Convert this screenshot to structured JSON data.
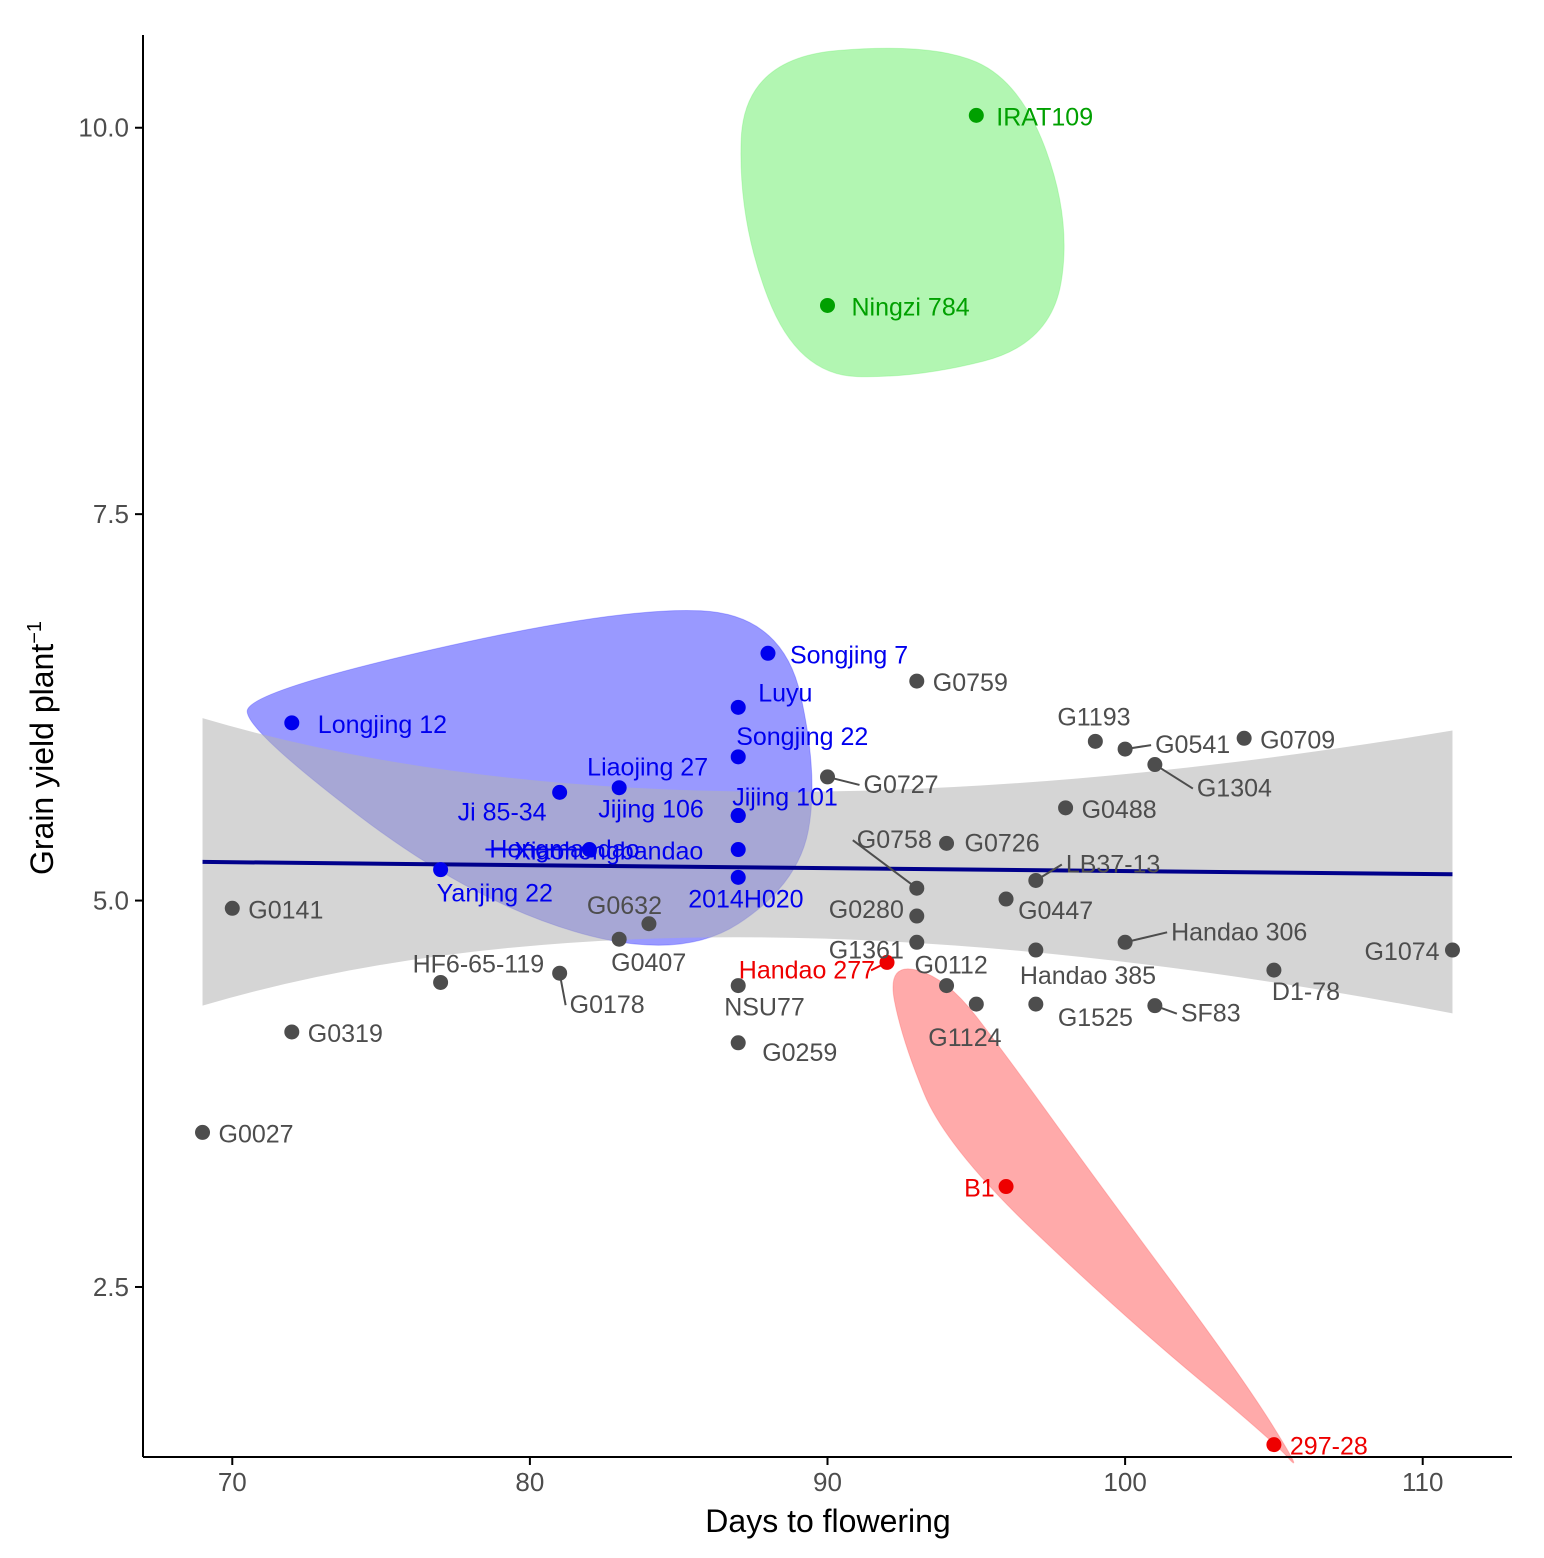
{
  "chart_data": {
    "type": "scatter",
    "title": "",
    "xlabel": "Days to flowering",
    "ylabel": "Grain yield plant",
    "ylabel_superscript": "−1",
    "xlim": [
      67,
      113
    ],
    "ylim": [
      1.4,
      10.6
    ],
    "xticks": [
      70,
      80,
      90,
      100,
      110
    ],
    "yticks": [
      2.5,
      5.0,
      7.5,
      10.0
    ],
    "xtick_labels": [
      "70",
      "80",
      "90",
      "100",
      "110"
    ],
    "ytick_labels": [
      "2.5",
      "5.0",
      "7.5",
      "10.0"
    ],
    "grid": false,
    "colors": {
      "blue": "#0000ee",
      "green": "#00a000",
      "red": "#ee0000",
      "gray": "#4d4d4d",
      "trend": "#00008b"
    },
    "trend": {
      "x": [
        69,
        111
      ],
      "y": [
        5.25,
        5.17
      ],
      "ci_lower": [
        4.32,
        4.27
      ],
      "ci_upper": [
        6.18,
        6.1
      ]
    },
    "hulls": [
      {
        "group": "blue",
        "color": "#3333ff"
      },
      {
        "group": "green",
        "color": "#66ee66"
      },
      {
        "group": "red",
        "color": "#ff5555"
      }
    ],
    "points": [
      {
        "label": "IRAT109",
        "x": 95,
        "y": 10.08,
        "group": "green"
      },
      {
        "label": "Ningzi 784",
        "x": 90,
        "y": 8.85,
        "group": "green"
      },
      {
        "label": "Songjing 7",
        "x": 88,
        "y": 6.6,
        "group": "blue"
      },
      {
        "label": "Luyu",
        "x": 87,
        "y": 6.25,
        "group": "blue"
      },
      {
        "label": "Longjing 12",
        "x": 72,
        "y": 6.15,
        "group": "blue"
      },
      {
        "label": "Songjing 22",
        "x": 87,
        "y": 5.93,
        "group": "blue"
      },
      {
        "label": "Liaojing 27",
        "x": 83,
        "y": 5.73,
        "group": "blue"
      },
      {
        "label": "Ji 85-34",
        "x": 81,
        "y": 5.7,
        "group": "blue"
      },
      {
        "label": "Jijing 106",
        "x": 87,
        "y": 5.55,
        "group": "blue"
      },
      {
        "label": "Jijing 101",
        "x": 87,
        "y": 5.55,
        "group": "blue"
      },
      {
        "label": "Hongmaodao",
        "x": 82,
        "y": 5.33,
        "group": "blue"
      },
      {
        "label": "Xiaohongbandao",
        "x": 87,
        "y": 5.33,
        "group": "blue"
      },
      {
        "label": "Yanjing 22",
        "x": 77,
        "y": 5.2,
        "group": "blue"
      },
      {
        "label": "2014H020",
        "x": 87,
        "y": 5.15,
        "group": "blue"
      },
      {
        "label": "Handao 277",
        "x": 92,
        "y": 4.6,
        "group": "red"
      },
      {
        "label": "B1",
        "x": 96,
        "y": 3.15,
        "group": "red"
      },
      {
        "label": "297-28",
        "x": 105,
        "y": 1.48,
        "group": "red"
      },
      {
        "label": "G0759",
        "x": 93,
        "y": 6.42,
        "group": "gray"
      },
      {
        "label": "G1193",
        "x": 99,
        "y": 6.03,
        "group": "gray"
      },
      {
        "label": "G0541",
        "x": 100,
        "y": 5.98,
        "group": "gray"
      },
      {
        "label": "G0709",
        "x": 104,
        "y": 6.05,
        "group": "gray"
      },
      {
        "label": "G1304",
        "x": 101,
        "y": 5.88,
        "group": "gray"
      },
      {
        "label": "G0727",
        "x": 90,
        "y": 5.8,
        "group": "gray"
      },
      {
        "label": "G0488",
        "x": 98,
        "y": 5.6,
        "group": "gray"
      },
      {
        "label": "G0758",
        "x": 93,
        "y": 5.08,
        "group": "gray"
      },
      {
        "label": "G0726",
        "x": 94,
        "y": 5.37,
        "group": "gray"
      },
      {
        "label": "LB37-13",
        "x": 97,
        "y": 5.13,
        "group": "gray"
      },
      {
        "label": "G0280",
        "x": 93,
        "y": 4.9,
        "group": "gray"
      },
      {
        "label": "G0447",
        "x": 96,
        "y": 5.01,
        "group": "gray"
      },
      {
        "label": "G0141",
        "x": 70,
        "y": 4.95,
        "group": "gray"
      },
      {
        "label": "G0632",
        "x": 84,
        "y": 4.85,
        "group": "gray"
      },
      {
        "label": "G0407",
        "x": 83,
        "y": 4.75,
        "group": "gray"
      },
      {
        "label": "G1361",
        "x": 93,
        "y": 4.73,
        "group": "gray"
      },
      {
        "label": "G0112",
        "x": 94,
        "y": 4.45,
        "group": "gray"
      },
      {
        "label": "G1124",
        "x": 95,
        "y": 4.33,
        "group": "gray"
      },
      {
        "label": "Handao 306",
        "x": 100,
        "y": 4.73,
        "group": "gray"
      },
      {
        "label": "G1074",
        "x": 111,
        "y": 4.68,
        "group": "gray"
      },
      {
        "label": "Handao 385",
        "x": 97,
        "y": 4.68,
        "group": "gray"
      },
      {
        "label": "HF6-65-119",
        "x": 77,
        "y": 4.47,
        "group": "gray"
      },
      {
        "label": "G0178",
        "x": 81,
        "y": 4.53,
        "group": "gray"
      },
      {
        "label": "NSU77",
        "x": 87,
        "y": 4.45,
        "group": "gray"
      },
      {
        "label": "D1-78",
        "x": 105,
        "y": 4.55,
        "group": "gray"
      },
      {
        "label": "G1525",
        "x": 97,
        "y": 4.33,
        "group": "gray"
      },
      {
        "label": "SF83",
        "x": 101,
        "y": 4.32,
        "group": "gray"
      },
      {
        "label": "G0319",
        "x": 72,
        "y": 4.15,
        "group": "gray"
      },
      {
        "label": "G0259",
        "x": 87,
        "y": 4.08,
        "group": "gray"
      },
      {
        "label": "G0027",
        "x": 69,
        "y": 3.5,
        "group": "gray"
      }
    ]
  }
}
